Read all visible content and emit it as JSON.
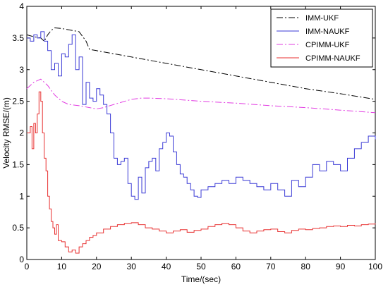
{
  "chart_data": {
    "type": "line",
    "title": "",
    "xlabel": "Time/(sec)",
    "ylabel": "Velocity RMSE/(m)",
    "xlim": [
      0,
      100
    ],
    "ylim": [
      0,
      4
    ],
    "xticks": [
      "0",
      "10",
      "20",
      "30",
      "40",
      "50",
      "60",
      "70",
      "80",
      "90",
      "100"
    ],
    "yticks": [
      "0",
      "0.5",
      "1",
      "1.5",
      "2",
      "2.5",
      "3",
      "3.5",
      "4"
    ],
    "grid": false,
    "legend_position": "top-right",
    "series": [
      {
        "name": "IMM-UKF",
        "color": "#000000",
        "dash": "dashdot",
        "x": [
          0,
          2,
          4,
          5,
          6,
          7,
          8,
          10,
          12,
          15,
          17,
          18,
          20,
          30,
          40,
          50,
          60,
          70,
          80,
          90,
          100
        ],
        "y": [
          3.55,
          3.52,
          3.5,
          3.45,
          3.55,
          3.62,
          3.66,
          3.65,
          3.63,
          3.6,
          3.45,
          3.32,
          3.3,
          3.2,
          3.1,
          3.0,
          2.9,
          2.8,
          2.7,
          2.62,
          2.53
        ]
      },
      {
        "name": "IMM-NAUKF",
        "color": "#3a3ad6",
        "dash": "solid",
        "x": [
          0,
          1,
          2,
          3,
          4,
          5,
          6,
          7,
          8,
          9,
          10,
          11,
          12,
          13,
          14,
          15,
          16,
          17,
          18,
          19,
          20,
          21,
          22,
          23,
          24,
          25,
          26,
          27,
          28,
          29,
          30,
          31,
          32,
          33,
          34,
          35,
          36,
          37,
          38,
          39,
          40,
          41,
          42,
          43,
          44,
          45,
          46,
          47,
          48,
          49,
          50,
          52,
          54,
          56,
          58,
          60,
          62,
          64,
          66,
          68,
          70,
          72,
          74,
          76,
          78,
          80,
          82,
          84,
          86,
          88,
          90,
          92,
          94,
          96,
          98,
          100
        ],
        "y": [
          3.5,
          3.45,
          3.55,
          3.5,
          3.6,
          3.45,
          3.3,
          3.0,
          3.1,
          2.9,
          3.25,
          3.2,
          3.4,
          3.55,
          3.0,
          3.2,
          2.45,
          2.8,
          2.55,
          2.5,
          2.7,
          2.6,
          2.45,
          2.3,
          2.0,
          1.6,
          1.5,
          1.55,
          1.6,
          1.2,
          1.0,
          0.95,
          1.3,
          1.05,
          1.45,
          1.55,
          1.6,
          1.4,
          1.75,
          1.85,
          2.0,
          1.95,
          1.7,
          1.5,
          1.35,
          1.3,
          1.2,
          1.1,
          1.0,
          0.98,
          1.1,
          1.15,
          1.2,
          1.25,
          1.2,
          1.3,
          1.25,
          1.2,
          1.15,
          1.1,
          1.2,
          1.1,
          1.0,
          1.25,
          1.15,
          1.3,
          1.5,
          1.4,
          1.55,
          1.5,
          1.4,
          1.6,
          1.75,
          1.85,
          1.95,
          1.9
        ]
      },
      {
        "name": "CPIMM-UKF",
        "color": "#e23ce2",
        "dash": "dashdot",
        "x": [
          0,
          2,
          4,
          6,
          8,
          10,
          12,
          15,
          18,
          20,
          22,
          25,
          30,
          33,
          35,
          40,
          50,
          60,
          70,
          80,
          90,
          100
        ],
        "y": [
          2.7,
          2.8,
          2.85,
          2.75,
          2.6,
          2.5,
          2.45,
          2.43,
          2.4,
          2.38,
          2.4,
          2.45,
          2.53,
          2.55,
          2.55,
          2.54,
          2.5,
          2.47,
          2.43,
          2.4,
          2.36,
          2.32
        ]
      },
      {
        "name": "CPIMM-NAUKF",
        "color": "#e83030",
        "dash": "solid",
        "x": [
          0,
          1,
          1.5,
          2,
          2.5,
          3,
          3.5,
          4,
          4.5,
          5,
          5.5,
          6,
          6.5,
          7,
          7.5,
          8,
          8.5,
          9,
          10,
          11,
          12,
          13,
          14,
          15,
          16,
          17,
          18,
          19,
          20,
          22,
          24,
          26,
          28,
          30,
          32,
          34,
          36,
          38,
          40,
          42,
          44,
          46,
          48,
          50,
          52,
          54,
          56,
          58,
          60,
          62,
          64,
          66,
          68,
          70,
          72,
          74,
          76,
          78,
          80,
          82,
          84,
          86,
          88,
          90,
          92,
          94,
          96,
          98,
          100
        ],
        "y": [
          2.0,
          2.1,
          1.75,
          2.15,
          2.0,
          2.3,
          2.65,
          2.5,
          2.0,
          1.6,
          1.4,
          1.0,
          0.8,
          0.6,
          0.5,
          0.4,
          0.55,
          0.3,
          0.28,
          0.2,
          0.12,
          0.15,
          0.1,
          0.2,
          0.25,
          0.3,
          0.35,
          0.38,
          0.42,
          0.48,
          0.52,
          0.55,
          0.57,
          0.58,
          0.55,
          0.5,
          0.48,
          0.45,
          0.42,
          0.45,
          0.47,
          0.43,
          0.46,
          0.48,
          0.52,
          0.55,
          0.57,
          0.55,
          0.5,
          0.45,
          0.42,
          0.45,
          0.47,
          0.48,
          0.44,
          0.42,
          0.46,
          0.48,
          0.47,
          0.49,
          0.5,
          0.52,
          0.53,
          0.52,
          0.54,
          0.53,
          0.55,
          0.56,
          0.57
        ]
      }
    ]
  }
}
